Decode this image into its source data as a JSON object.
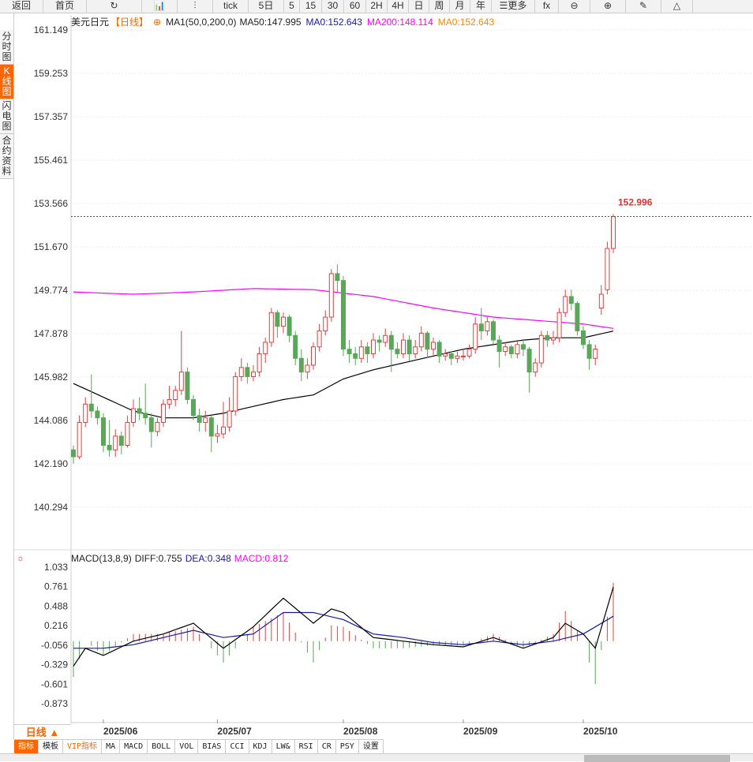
{
  "toolbar": {
    "items": [
      "返回",
      "首页",
      "↻",
      "📊",
      "⫶",
      "tick",
      "5日",
      "5",
      "15",
      "30",
      "60",
      "2H",
      "4H",
      "日",
      "周",
      "月",
      "年",
      "☰更多",
      "fx",
      "⊖",
      "⊕",
      "✎",
      "△"
    ]
  },
  "left_tabs": [
    {
      "label": "分时图",
      "active": false
    },
    {
      "label": "K线图",
      "active": true
    },
    {
      "label": "闪电图",
      "active": false
    },
    {
      "label": "合约资料",
      "active": false
    }
  ],
  "header": {
    "symbol": "美元日元",
    "period": "【日线】",
    "indicator": "MA1(50,0,200,0)",
    "ma50": "MA50:147.995",
    "ma0a": "MA0:152.643",
    "ma200": "MA200:148.114",
    "ma0b": "MA0:152.643"
  },
  "macd_header": {
    "name": "MACD(13,8,9)",
    "diff": "DIFF:0.755",
    "dea": "DEA:0.348",
    "macd": "MACD:0.812"
  },
  "period_selector": "日线 ▲",
  "bottom_tabs": [
    "指标",
    "模板",
    "VIP指标",
    "MA",
    "MACD",
    "BOLL",
    "VOL",
    "BIAS",
    "CCI",
    "KDJ",
    "LW&",
    "RSI",
    "CR",
    "PSY",
    "设置"
  ],
  "colors": {
    "up": "#e04040",
    "down": "#5aa65a",
    "ma50": "#000000",
    "ma200": "#ff00ff",
    "dea": "#1a1aa0",
    "accent": "#ff6600"
  },
  "chart_data": [
    {
      "type": "candlestick",
      "price_ticks": [
        "161.149",
        "159.253",
        "157.357",
        "155.461",
        "153.566",
        "151.670",
        "149.774",
        "147.878",
        "145.982",
        "144.086",
        "142.190",
        "140.294"
      ],
      "ylim": [
        140.294,
        161.149
      ],
      "last_price": "152.996",
      "x_ticks": [
        {
          "label": "2025/06",
          "index": 5
        },
        {
          "label": "2025/07",
          "index": 24
        },
        {
          "label": "2025/08",
          "index": 45
        },
        {
          "label": "2025/09",
          "index": 65
        },
        {
          "label": "2025/10",
          "index": 85
        }
      ],
      "ohlc": [
        [
          142.8,
          143.0,
          142.2,
          142.5
        ],
        [
          142.5,
          144.3,
          142.4,
          144.0
        ],
        [
          144.0,
          145.1,
          143.8,
          144.8
        ],
        [
          144.8,
          146.1,
          144.2,
          144.5
        ],
        [
          144.5,
          144.7,
          143.9,
          144.2
        ],
        [
          144.2,
          144.4,
          142.7,
          143.0
        ],
        [
          143.0,
          144.1,
          142.5,
          142.8
        ],
        [
          142.8,
          143.7,
          142.5,
          143.4
        ],
        [
          143.4,
          143.6,
          142.6,
          143.0
        ],
        [
          143.0,
          144.3,
          142.9,
          144.0
        ],
        [
          144.0,
          145.0,
          143.8,
          144.6
        ],
        [
          144.6,
          145.1,
          144.1,
          144.4
        ],
        [
          144.4,
          145.7,
          143.9,
          144.2
        ],
        [
          144.2,
          144.4,
          142.9,
          143.6
        ],
        [
          143.6,
          144.2,
          143.4,
          144.0
        ],
        [
          144.0,
          145.0,
          143.8,
          144.8
        ],
        [
          144.8,
          145.6,
          144.6,
          145.0
        ],
        [
          145.0,
          145.6,
          144.7,
          145.4
        ],
        [
          145.4,
          148.0,
          145.2,
          146.2
        ],
        [
          146.2,
          146.4,
          144.8,
          145.0
        ],
        [
          145.0,
          145.2,
          144.1,
          144.3
        ],
        [
          144.3,
          144.6,
          143.6,
          144.0
        ],
        [
          144.0,
          144.5,
          143.6,
          144.2
        ],
        [
          144.2,
          144.3,
          142.7,
          143.4
        ],
        [
          143.4,
          143.9,
          143.1,
          143.5
        ],
        [
          143.5,
          144.9,
          143.3,
          143.8
        ],
        [
          143.8,
          145.1,
          143.6,
          144.5
        ],
        [
          144.5,
          146.2,
          144.3,
          146.0
        ],
        [
          146.0,
          146.8,
          145.8,
          146.4
        ],
        [
          146.4,
          146.6,
          145.7,
          146.0
        ],
        [
          146.0,
          146.5,
          145.8,
          146.2
        ],
        [
          146.2,
          147.3,
          146.0,
          147.0
        ],
        [
          147.0,
          147.7,
          146.6,
          147.5
        ],
        [
          147.5,
          149.0,
          147.3,
          148.8
        ],
        [
          148.8,
          148.9,
          147.7,
          148.2
        ],
        [
          148.2,
          148.8,
          147.9,
          148.6
        ],
        [
          148.6,
          148.7,
          147.5,
          147.8
        ],
        [
          147.8,
          148.0,
          146.5,
          146.8
        ],
        [
          146.8,
          147.2,
          145.8,
          146.2
        ],
        [
          146.2,
          146.8,
          145.9,
          146.5
        ],
        [
          146.5,
          147.5,
          146.3,
          147.3
        ],
        [
          147.3,
          148.3,
          147.1,
          148.0
        ],
        [
          148.0,
          148.9,
          147.8,
          148.6
        ],
        [
          148.6,
          150.7,
          148.4,
          150.5
        ],
        [
          150.5,
          150.9,
          149.7,
          150.2
        ],
        [
          150.2,
          150.4,
          146.9,
          147.2
        ],
        [
          147.2,
          147.6,
          146.6,
          147.0
        ],
        [
          147.0,
          147.3,
          146.5,
          146.8
        ],
        [
          146.8,
          147.6,
          146.6,
          147.3
        ],
        [
          147.3,
          147.5,
          146.6,
          147.0
        ],
        [
          147.0,
          147.9,
          146.8,
          147.6
        ],
        [
          147.6,
          147.8,
          147.1,
          147.5
        ],
        [
          147.5,
          148.1,
          147.3,
          147.8
        ],
        [
          147.8,
          148.0,
          146.2,
          147.2
        ],
        [
          147.2,
          147.5,
          146.8,
          147.0
        ],
        [
          147.0,
          147.9,
          146.8,
          147.6
        ],
        [
          147.6,
          147.8,
          146.7,
          147.0
        ],
        [
          147.0,
          147.6,
          146.8,
          147.3
        ],
        [
          147.3,
          148.2,
          147.1,
          147.9
        ],
        [
          147.9,
          148.0,
          146.8,
          147.2
        ],
        [
          147.2,
          147.7,
          146.9,
          147.5
        ],
        [
          147.5,
          147.6,
          146.6,
          146.9
        ],
        [
          146.9,
          147.2,
          146.7,
          147.0
        ],
        [
          147.0,
          147.1,
          146.5,
          146.8
        ],
        [
          146.8,
          147.1,
          146.6,
          146.9
        ],
        [
          146.9,
          147.2,
          146.7,
          146.9
        ],
        [
          146.9,
          147.4,
          146.8,
          147.2
        ],
        [
          147.2,
          148.6,
          147.0,
          148.3
        ],
        [
          148.3,
          149.0,
          147.6,
          148.0
        ],
        [
          148.0,
          148.6,
          147.8,
          148.4
        ],
        [
          148.4,
          148.5,
          147.4,
          147.6
        ],
        [
          147.6,
          147.8,
          146.4,
          147.1
        ],
        [
          147.1,
          147.5,
          146.9,
          147.3
        ],
        [
          147.3,
          147.4,
          146.8,
          147.0
        ],
        [
          147.0,
          147.6,
          146.8,
          147.4
        ],
        [
          147.4,
          147.6,
          146.9,
          147.2
        ],
        [
          147.2,
          147.3,
          145.3,
          146.2
        ],
        [
          146.2,
          146.8,
          146.0,
          146.6
        ],
        [
          146.6,
          148.0,
          146.4,
          147.8
        ],
        [
          147.8,
          148.0,
          147.3,
          147.6
        ],
        [
          147.6,
          148.0,
          147.4,
          147.7
        ],
        [
          147.7,
          149.0,
          147.5,
          148.8
        ],
        [
          148.8,
          149.8,
          148.6,
          149.5
        ],
        [
          149.5,
          149.8,
          148.9,
          149.2
        ],
        [
          149.2,
          149.3,
          147.8,
          148.0
        ],
        [
          148.0,
          148.2,
          147.2,
          147.4
        ],
        [
          147.4,
          147.6,
          146.3,
          146.8
        ],
        [
          146.8,
          147.4,
          146.5,
          147.2
        ],
        [
          149.0,
          150.0,
          148.7,
          149.6
        ],
        [
          149.8,
          151.9,
          149.6,
          151.6
        ],
        [
          151.6,
          153.1,
          151.4,
          152.99
        ]
      ],
      "ma50": [
        [
          0,
          145.7
        ],
        [
          5,
          145.1
        ],
        [
          10,
          144.5
        ],
        [
          15,
          144.2
        ],
        [
          20,
          144.2
        ],
        [
          25,
          144.4
        ],
        [
          30,
          144.7
        ],
        [
          35,
          145.0
        ],
        [
          40,
          145.2
        ],
        [
          45,
          145.9
        ],
        [
          50,
          146.3
        ],
        [
          55,
          146.6
        ],
        [
          60,
          146.9
        ],
        [
          65,
          147.2
        ],
        [
          70,
          147.4
        ],
        [
          75,
          147.6
        ],
        [
          80,
          147.7
        ],
        [
          85,
          147.7
        ],
        [
          90,
          147.99
        ]
      ],
      "ma200": [
        [
          0,
          149.7
        ],
        [
          10,
          149.6
        ],
        [
          20,
          149.7
        ],
        [
          30,
          149.85
        ],
        [
          40,
          149.8
        ],
        [
          50,
          149.5
        ],
        [
          60,
          149.0
        ],
        [
          70,
          148.6
        ],
        [
          80,
          148.4
        ],
        [
          85,
          148.3
        ],
        [
          90,
          148.11
        ]
      ]
    },
    {
      "type": "macd",
      "ticks": [
        "1.033",
        "0.761",
        "0.488",
        "0.216",
        "-0.056",
        "-0.329",
        "-0.601",
        "-0.873"
      ],
      "ylim": [
        -0.873,
        1.033
      ],
      "diff": [
        [
          0,
          -0.35
        ],
        [
          2,
          -0.1
        ],
        [
          5,
          -0.2
        ],
        [
          10,
          0.0
        ],
        [
          15,
          0.1
        ],
        [
          20,
          0.25
        ],
        [
          25,
          -0.1
        ],
        [
          30,
          0.2
        ],
        [
          35,
          0.6
        ],
        [
          40,
          0.25
        ],
        [
          43,
          0.45
        ],
        [
          45,
          0.4
        ],
        [
          50,
          0.05
        ],
        [
          55,
          0.0
        ],
        [
          60,
          -0.05
        ],
        [
          65,
          -0.08
        ],
        [
          70,
          0.05
        ],
        [
          75,
          -0.1
        ],
        [
          80,
          0.05
        ],
        [
          82,
          0.25
        ],
        [
          85,
          0.1
        ],
        [
          87,
          -0.1
        ],
        [
          90,
          0.755
        ]
      ],
      "dea": [
        [
          0,
          -0.1
        ],
        [
          5,
          -0.1
        ],
        [
          10,
          -0.05
        ],
        [
          15,
          0.05
        ],
        [
          20,
          0.15
        ],
        [
          25,
          0.05
        ],
        [
          30,
          0.1
        ],
        [
          35,
          0.4
        ],
        [
          40,
          0.4
        ],
        [
          45,
          0.3
        ],
        [
          50,
          0.1
        ],
        [
          55,
          0.05
        ],
        [
          60,
          -0.02
        ],
        [
          65,
          -0.05
        ],
        [
          70,
          0.0
        ],
        [
          75,
          -0.05
        ],
        [
          80,
          0.0
        ],
        [
          85,
          0.1
        ],
        [
          90,
          0.348
        ]
      ]
    }
  ]
}
